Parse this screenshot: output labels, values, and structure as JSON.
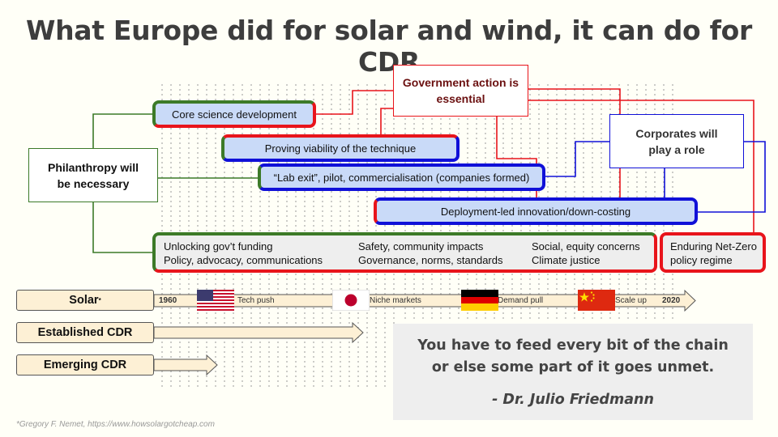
{
  "title": "What Europe did for solar and wind, it can do for CDR",
  "callouts": {
    "philanthropy": "Philanthropy will be necessary",
    "government": "Government action is essential",
    "corporates": "Corporates will play a role"
  },
  "stages": {
    "core_science": "Core science development",
    "proving": "Proving viability of the technique",
    "lab_exit": "“Lab exit”, pilot, commercialisation (companies formed)",
    "deployment": "Deployment-led innovation/down-costing"
  },
  "enablers": {
    "col1_line1": "Unlocking gov’t funding",
    "col1_line2": "Policy, advocacy, communications",
    "col2_line1": "Safety, community impacts",
    "col2_line2": "Governance, norms, standards",
    "col3_line1": "Social, equity concerns",
    "col3_line2": "Climate justice",
    "netzero": "Enduring Net-Zero policy regime"
  },
  "timeline": {
    "solar_label": "Solar",
    "solar_marker": "*",
    "established_label": "Established CDR",
    "emerging_label": "Emerging CDR",
    "start_year": "1960",
    "end_year": "2020",
    "phases": [
      "Tech push",
      "Niche markets",
      "Demand pull",
      "Scale up"
    ],
    "flags": [
      "usa-flag",
      "japan-flag",
      "germany-flag",
      "china-flag"
    ]
  },
  "quote": {
    "text": "You have to feed every bit of the chain or else some part of it goes unmet.",
    "author": "- Dr. Julio Friedmann"
  },
  "footnote": "*Gregory F. Nemet, https://www.howsolargotcheap.com",
  "colors": {
    "green": "#3c7a28",
    "red": "#e8141b",
    "blue": "#1010d8",
    "stage_fill": "#c9daf8",
    "enabler_fill": "#eeeeee",
    "timeline_fill": "#fdf0d5"
  }
}
